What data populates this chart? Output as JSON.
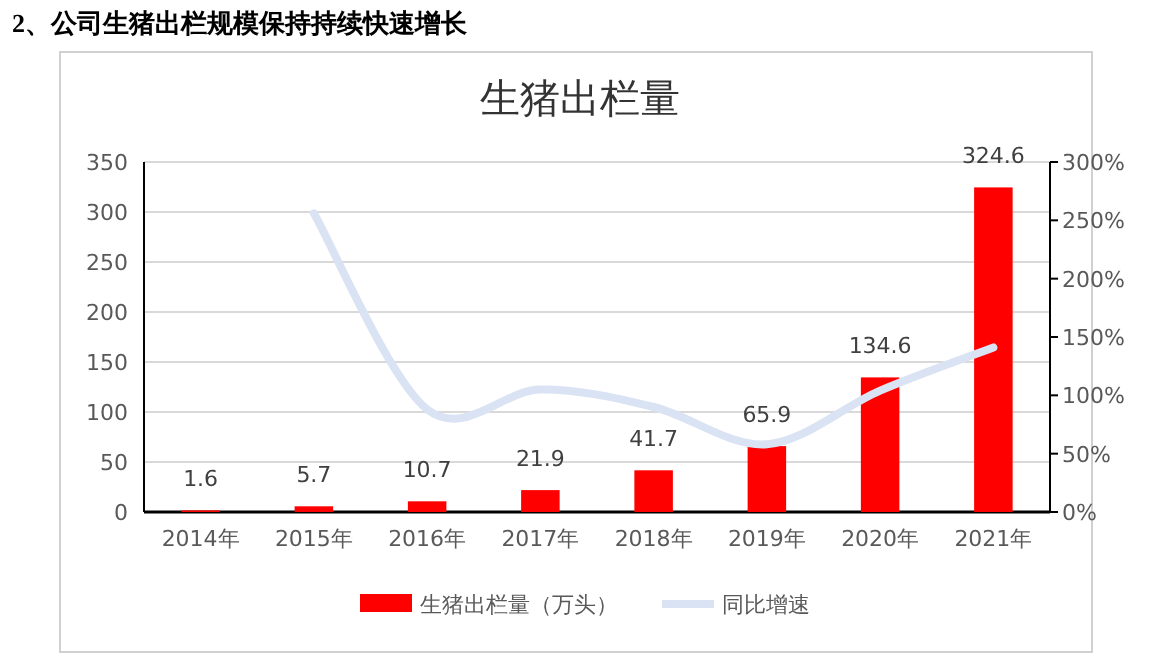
{
  "chart_data": {
    "type": "bar",
    "title": "生猪出栏量",
    "annotations": [
      "2、公司生猪出栏规模保持持续快速增长"
    ],
    "categories": [
      "2014年",
      "2015年",
      "2016年",
      "2017年",
      "2018年",
      "2019年",
      "2020年",
      "2021年"
    ],
    "series": [
      {
        "name": "生猪出栏量（万头）",
        "color": "#ff0000",
        "values": [
          1.6,
          5.7,
          10.7,
          21.9,
          41.7,
          65.9,
          134.6,
          324.6
        ],
        "data_labels": true
      },
      {
        "name": "同比增速",
        "type": "line",
        "axis": "y2",
        "color": "#dae3f3",
        "values": [
          null,
          256,
          88,
          105,
          90,
          58,
          104,
          141
        ]
      }
    ],
    "ylim": [
      0,
      350
    ],
    "yticks": [
      0,
      50,
      100,
      150,
      200,
      250,
      300,
      350
    ],
    "y2lim": [
      0,
      300
    ],
    "y2ticks": [
      {
        "value": 0,
        "label": "0%"
      },
      {
        "value": 50,
        "label": "50%"
      },
      {
        "value": 100,
        "label": "100%"
      },
      {
        "value": 150,
        "label": "150%"
      },
      {
        "value": 200,
        "label": "200%"
      },
      {
        "value": 250,
        "label": "250%"
      },
      {
        "value": 300,
        "label": "300%"
      }
    ],
    "grid": "y",
    "legend": "bottom",
    "marker": "none",
    "line_style": "solid"
  }
}
